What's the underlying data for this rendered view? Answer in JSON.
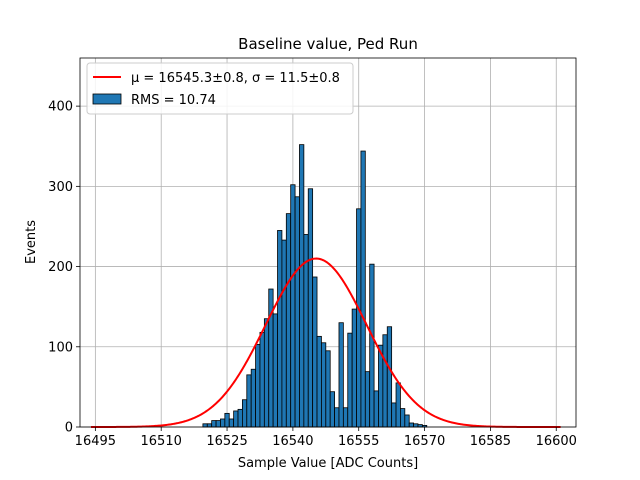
{
  "chart_data": {
    "type": "bar",
    "title": "Baseline value, Ped Run",
    "xlabel": "Sample Value [ADC Counts]",
    "ylabel": "Events",
    "xlim": [
      16491.5,
      16604.5
    ],
    "ylim": [
      0,
      460
    ],
    "xticks": [
      16495,
      16510,
      16525,
      16540,
      16555,
      16570,
      16585,
      16600
    ],
    "yticks": [
      0,
      100,
      200,
      300,
      400
    ],
    "grid": true,
    "legend_position": "top-left",
    "legend": {
      "fit_label": "μ = 16545.3±0.8, σ = 11.5±0.8",
      "hist_label": "RMS = 10.74"
    },
    "colors": {
      "bar": "#1f77b4",
      "fit": "#ff0000"
    },
    "histogram": {
      "bin_width": 1,
      "bins": [
        {
          "x": 16520,
          "y": 4
        },
        {
          "x": 16521,
          "y": 4
        },
        {
          "x": 16522,
          "y": 8
        },
        {
          "x": 16523,
          "y": 8
        },
        {
          "x": 16524,
          "y": 10
        },
        {
          "x": 16525,
          "y": 17
        },
        {
          "x": 16526,
          "y": 10
        },
        {
          "x": 16527,
          "y": 20
        },
        {
          "x": 16528,
          "y": 22
        },
        {
          "x": 16529,
          "y": 34
        },
        {
          "x": 16530,
          "y": 65
        },
        {
          "x": 16531,
          "y": 72
        },
        {
          "x": 16532,
          "y": 103
        },
        {
          "x": 16533,
          "y": 118
        },
        {
          "x": 16534,
          "y": 135
        },
        {
          "x": 16535,
          "y": 172
        },
        {
          "x": 16536,
          "y": 141
        },
        {
          "x": 16537,
          "y": 245
        },
        {
          "x": 16538,
          "y": 233
        },
        {
          "x": 16539,
          "y": 266
        },
        {
          "x": 16540,
          "y": 302
        },
        {
          "x": 16541,
          "y": 287
        },
        {
          "x": 16542,
          "y": 352
        },
        {
          "x": 16543,
          "y": 240
        },
        {
          "x": 16544,
          "y": 297
        },
        {
          "x": 16545,
          "y": 187
        },
        {
          "x": 16546,
          "y": 113
        },
        {
          "x": 16547,
          "y": 105
        },
        {
          "x": 16548,
          "y": 95
        },
        {
          "x": 16549,
          "y": 44
        },
        {
          "x": 16550,
          "y": 24
        },
        {
          "x": 16551,
          "y": 130
        },
        {
          "x": 16552,
          "y": 24
        },
        {
          "x": 16553,
          "y": 117
        },
        {
          "x": 16554,
          "y": 147
        },
        {
          "x": 16555,
          "y": 272
        },
        {
          "x": 16556,
          "y": 344
        },
        {
          "x": 16557,
          "y": 69
        },
        {
          "x": 16558,
          "y": 203
        },
        {
          "x": 16559,
          "y": 45
        },
        {
          "x": 16560,
          "y": 102
        },
        {
          "x": 16561,
          "y": 115
        },
        {
          "x": 16562,
          "y": 125
        },
        {
          "x": 16563,
          "y": 30
        },
        {
          "x": 16564,
          "y": 55
        },
        {
          "x": 16565,
          "y": 23
        },
        {
          "x": 16566,
          "y": 15
        },
        {
          "x": 16567,
          "y": 5
        },
        {
          "x": 16568,
          "y": 4
        },
        {
          "x": 16569,
          "y": 3
        },
        {
          "x": 16570,
          "y": 2
        }
      ]
    },
    "fit": {
      "type": "gaussian",
      "mu": 16545.3,
      "sigma": 11.5,
      "amplitude": 210,
      "x_range": [
        16494,
        16601
      ]
    }
  }
}
